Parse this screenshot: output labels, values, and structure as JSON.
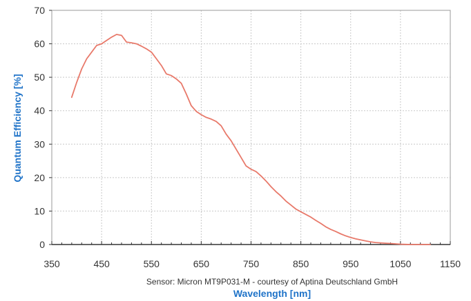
{
  "chart_data": {
    "type": "line",
    "title": "",
    "xlabel": "Wavelength [nm]",
    "ylabel": "Quantum Efficiency [%]",
    "caption": "Sensor: Micron MT9P031-M - courtesy of Aptina Deutschland GmbH",
    "xlim": [
      350,
      1150
    ],
    "ylim": [
      0,
      70
    ],
    "xticks": [
      350,
      450,
      550,
      650,
      750,
      850,
      950,
      1050,
      1150
    ],
    "xtick_labels": [
      "350",
      "450",
      "550",
      "650",
      "750",
      "850",
      "950",
      "1050",
      "1150"
    ],
    "yticks": [
      0,
      10,
      20,
      30,
      40,
      50,
      60,
      70
    ],
    "ytick_labels": [
      "0",
      "10",
      "20",
      "30",
      "40",
      "50",
      "60",
      "70"
    ],
    "grid": true,
    "colors": {
      "line": "#e8796a",
      "axis_title": "#1f73c8",
      "grid": "#c8c8c8"
    },
    "series": [
      {
        "name": "",
        "x": [
          390,
          400,
          410,
          420,
          430,
          440,
          450,
          460,
          470,
          480,
          490,
          500,
          510,
          520,
          530,
          540,
          550,
          560,
          570,
          580,
          590,
          600,
          610,
          620,
          630,
          640,
          650,
          660,
          670,
          680,
          690,
          700,
          710,
          720,
          730,
          740,
          750,
          760,
          770,
          780,
          790,
          800,
          810,
          820,
          830,
          840,
          850,
          860,
          870,
          880,
          890,
          900,
          910,
          920,
          930,
          940,
          950,
          960,
          970,
          980,
          990,
          1000,
          1010,
          1020,
          1030,
          1040,
          1050,
          1060,
          1070,
          1080,
          1090,
          1100,
          1110
        ],
        "y": [
          44,
          48.5,
          52.5,
          55.5,
          57.5,
          59.5,
          60,
          61,
          62,
          62.8,
          62.5,
          60.5,
          60.3,
          60,
          59.3,
          58.5,
          57.5,
          55.5,
          53.5,
          51,
          50.5,
          49.5,
          48.2,
          45,
          41.5,
          39.8,
          38.8,
          38,
          37.5,
          36.8,
          35.5,
          33,
          31,
          28.5,
          26,
          23.5,
          22.5,
          21.8,
          20.5,
          19,
          17.3,
          15.8,
          14.5,
          13,
          11.8,
          10.6,
          9.8,
          9,
          8.2,
          7.2,
          6.3,
          5.3,
          4.5,
          3.9,
          3.2,
          2.6,
          2.1,
          1.7,
          1.4,
          1.1,
          0.8,
          0.6,
          0.5,
          0.4,
          0.3,
          0.2,
          0.1,
          0.05,
          0,
          0,
          0,
          0,
          0
        ]
      }
    ]
  }
}
